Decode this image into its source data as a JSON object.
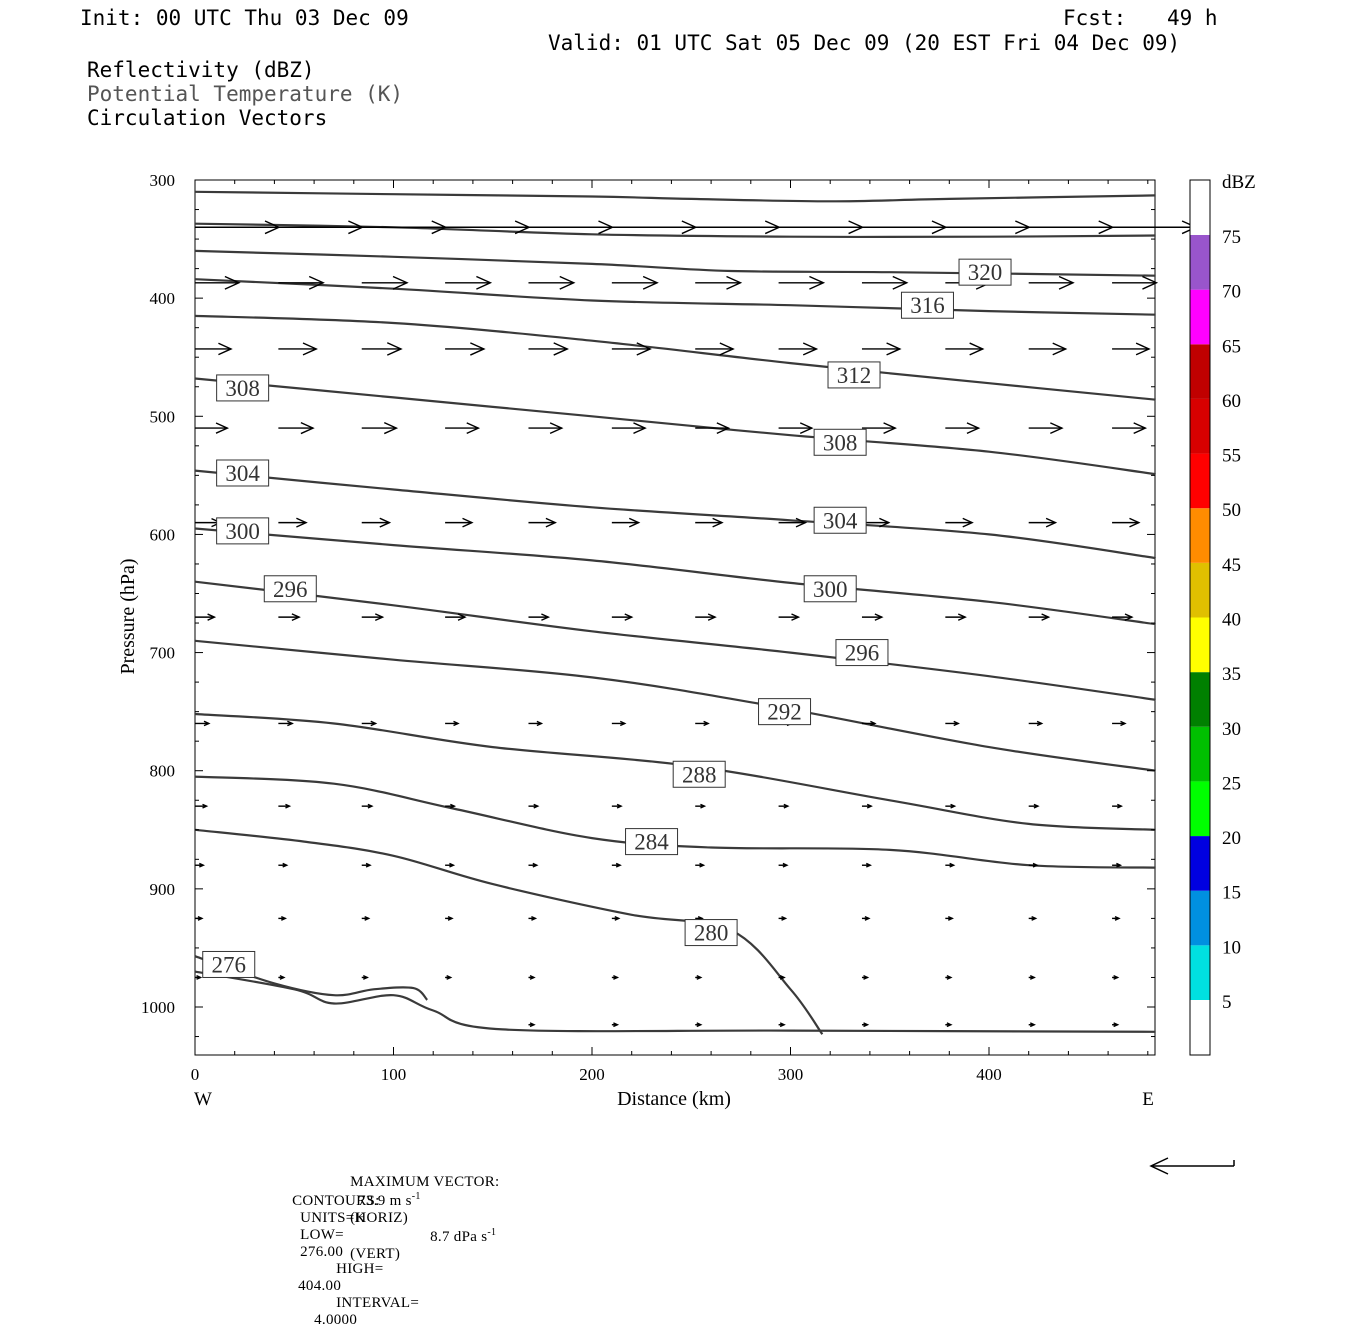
{
  "header": {
    "init": "Init: 00 UTC Thu 03 Dec 09",
    "fcst_label": "Fcst:",
    "fcst_value": "49 h",
    "valid": "Valid: 01 UTC Sat 05 Dec 09 (20 EST Fri 04 Dec 09)",
    "field1": "Reflectivity (dBZ)",
    "field2": "Potential Temperature (K)",
    "field3": "Circulation Vectors"
  },
  "colors": {
    "isentrope": "#3a3a3a",
    "vector": "#000000",
    "field2_text": "#555555"
  },
  "chart_data": {
    "type": "line",
    "title": "",
    "xlabel": "Distance (km)",
    "ylabel": "Pressure (hPa)",
    "xlim": [
      0,
      484
    ],
    "ylim": [
      1040,
      300
    ],
    "x_ticks": [
      0,
      100,
      200,
      300,
      400
    ],
    "y_ticks": [
      300,
      400,
      500,
      600,
      700,
      800,
      900,
      1000
    ],
    "x_end_labels": {
      "left": "W",
      "right": "E"
    },
    "grid": false,
    "legend": "none",
    "isentropes": [
      {
        "theta": null,
        "points": [
          [
            0,
            310
          ],
          [
            100,
            312
          ],
          [
            200,
            314
          ],
          [
            250,
            316
          ],
          [
            320,
            318
          ],
          [
            380,
            316
          ],
          [
            484,
            313
          ]
        ]
      },
      {
        "theta": null,
        "points": [
          [
            0,
            337
          ],
          [
            100,
            340
          ],
          [
            200,
            346
          ],
          [
            300,
            348
          ],
          [
            400,
            348
          ],
          [
            484,
            347
          ]
        ]
      },
      {
        "theta": null,
        "points": [
          [
            0,
            360
          ],
          [
            100,
            365
          ],
          [
            200,
            371
          ],
          [
            270,
            377
          ],
          [
            350,
            378
          ],
          [
            484,
            381
          ]
        ],
        "label": "320",
        "label_at": [
          398,
          378
        ]
      },
      {
        "theta": null,
        "points": [
          [
            0,
            384
          ],
          [
            100,
            392
          ],
          [
            200,
            402
          ],
          [
            300,
            406
          ],
          [
            400,
            411
          ],
          [
            484,
            414
          ]
        ],
        "label": "316",
        "label_at": [
          369,
          406
        ]
      },
      {
        "theta": null,
        "points": [
          [
            0,
            415
          ],
          [
            100,
            421
          ],
          [
            200,
            436
          ],
          [
            300,
            455
          ],
          [
            400,
            472
          ],
          [
            484,
            486
          ]
        ],
        "label": "312",
        "label_at": [
          332,
          465
        ]
      },
      {
        "theta": null,
        "points": [
          [
            0,
            468
          ],
          [
            100,
            484
          ],
          [
            200,
            500
          ],
          [
            300,
            516
          ],
          [
            400,
            530
          ],
          [
            484,
            549
          ]
        ],
        "label": "308",
        "label_at": [
          325,
          522
        ],
        "label2": "308",
        "label2_at": [
          24,
          476
        ]
      },
      {
        "theta": null,
        "points": [
          [
            0,
            546
          ],
          [
            100,
            562
          ],
          [
            200,
            577
          ],
          [
            300,
            588
          ],
          [
            400,
            600
          ],
          [
            484,
            620
          ]
        ],
        "label": "304",
        "label_at": [
          325,
          588
        ],
        "label2": "304",
        "label2_at": [
          24,
          548
        ]
      },
      {
        "theta": null,
        "points": [
          [
            0,
            595
          ],
          [
            100,
            609
          ],
          [
            200,
            622
          ],
          [
            300,
            641
          ],
          [
            400,
            657
          ],
          [
            484,
            676
          ]
        ],
        "label": "300",
        "label_at": [
          320,
          646
        ],
        "label2": "300",
        "label2_at": [
          24,
          597
        ]
      },
      {
        "theta": null,
        "points": [
          [
            0,
            640
          ],
          [
            100,
            660
          ],
          [
            200,
            682
          ],
          [
            300,
            700
          ],
          [
            400,
            720
          ],
          [
            484,
            740
          ]
        ],
        "label": "296",
        "label_at": [
          336,
          700
        ],
        "label2": "296",
        "label2_at": [
          48,
          646
        ]
      },
      {
        "theta": null,
        "points": [
          [
            0,
            690
          ],
          [
            100,
            706
          ],
          [
            200,
            721
          ],
          [
            290,
            745
          ],
          [
            400,
            780
          ],
          [
            484,
            800
          ]
        ],
        "label": "292",
        "label_at": [
          297,
          750
        ]
      },
      {
        "theta": null,
        "points": [
          [
            0,
            752
          ],
          [
            70,
            760
          ],
          [
            150,
            780
          ],
          [
            250,
            796
          ],
          [
            350,
            825
          ],
          [
            420,
            845
          ],
          [
            484,
            850
          ]
        ],
        "label": "288",
        "label_at": [
          254,
          803
        ]
      },
      {
        "theta": null,
        "points": [
          [
            0,
            805
          ],
          [
            70,
            811
          ],
          [
            130,
            832
          ],
          [
            200,
            857
          ],
          [
            260,
            865
          ],
          [
            350,
            867
          ],
          [
            420,
            880
          ],
          [
            484,
            882
          ]
        ],
        "label": "284",
        "label_at": [
          230,
          860
        ]
      },
      {
        "theta": null,
        "points": [
          [
            0,
            850
          ],
          [
            55,
            860
          ],
          [
            100,
            872
          ],
          [
            150,
            896
          ],
          [
            220,
            922
          ],
          [
            270,
            935
          ],
          [
            300,
            985
          ],
          [
            316,
            1023
          ]
        ],
        "label": "280",
        "label_at": [
          260,
          937
        ]
      },
      {
        "theta": null,
        "points": [
          [
            0,
            970
          ],
          [
            50,
            985
          ],
          [
            70,
            997
          ],
          [
            100,
            990
          ],
          [
            120,
            1003
          ],
          [
            155,
            1019
          ],
          [
            300,
            1020
          ],
          [
            484,
            1021
          ]
        ],
        "label": "276",
        "label_at": [
          17,
          964
        ]
      },
      {
        "theta": null,
        "points": [
          [
            0,
            957
          ],
          [
            40,
            980
          ],
          [
            70,
            990
          ],
          [
            90,
            985
          ],
          [
            110,
            984
          ],
          [
            117,
            994
          ]
        ]
      }
    ],
    "vectors": {
      "note_x": [
        0,
        42,
        84,
        126,
        168,
        210,
        252,
        294,
        336,
        378,
        420,
        462
      ],
      "levels": [
        {
          "p": 340,
          "u": [
            1.0,
            1.0,
            1.0,
            1.0,
            1.0,
            1.0,
            1.0,
            1.0,
            1.0,
            1.0,
            1.0,
            1.0
          ],
          "w": [
            0,
            0,
            0,
            0,
            0,
            0,
            0,
            0,
            0,
            0,
            0,
            0
          ]
        },
        {
          "p": 387,
          "u": [
            0.95,
            0.97,
            0.98,
            0.98,
            0.98,
            0.98,
            0.98,
            0.97,
            0.97,
            0.97,
            0.96,
            0.96
          ],
          "w": [
            0,
            0,
            0,
            0,
            0,
            0,
            0,
            0,
            0,
            0,
            0,
            0
          ]
        },
        {
          "p": 443,
          "u": [
            0.78,
            0.82,
            0.85,
            0.84,
            0.84,
            0.83,
            0.82,
            0.82,
            0.82,
            0.81,
            0.8,
            0.8
          ],
          "w": [
            0,
            0,
            0,
            0,
            0,
            0,
            0,
            0,
            0,
            0,
            0,
            0
          ]
        },
        {
          "p": 510,
          "u": [
            0.7,
            0.75,
            0.75,
            0.72,
            0.72,
            0.72,
            0.72,
            0.72,
            0.72,
            0.72,
            0.72,
            0.72
          ],
          "w": [
            0,
            0,
            0,
            0,
            0,
            0,
            0,
            0,
            0,
            0,
            0,
            0
          ]
        },
        {
          "p": 590,
          "u": [
            0.55,
            0.6,
            0.6,
            0.58,
            0.58,
            0.58,
            0.58,
            0.58,
            0.58,
            0.58,
            0.58,
            0.58
          ],
          "w": [
            0,
            0,
            0,
            0,
            0,
            0,
            0,
            0,
            0,
            0,
            0,
            0
          ]
        },
        {
          "p": 670,
          "u": [
            0.42,
            0.45,
            0.45,
            0.43,
            0.43,
            0.43,
            0.43,
            0.43,
            0.43,
            0.43,
            0.43,
            0.43
          ],
          "w": [
            0,
            0,
            0,
            0,
            0,
            0,
            0,
            0,
            0,
            0,
            0,
            0
          ]
        },
        {
          "p": 760,
          "u": [
            0.3,
            0.3,
            0.3,
            0.28,
            0.28,
            0.28,
            0.28,
            0.28,
            0.28,
            0.28,
            0.28,
            0.28
          ],
          "w": [
            0,
            0,
            0,
            0,
            0,
            0,
            0,
            0,
            0,
            0,
            0,
            0
          ]
        },
        {
          "p": 830,
          "u": [
            0.25,
            0.24,
            0.22,
            0.2,
            0.2,
            0.2,
            0.2,
            0.2,
            0.2,
            0.2,
            0.2,
            0.2
          ],
          "w": [
            0,
            0,
            0,
            0,
            0,
            0,
            0,
            0,
            0,
            0,
            0,
            0
          ]
        },
        {
          "p": 880,
          "u": [
            0.18,
            0.18,
            0.18,
            0.18,
            0.18,
            0.18,
            0.18,
            0.18,
            0.18,
            0.18,
            0.18,
            0.18
          ],
          "w": [
            0,
            0,
            0,
            0,
            0,
            0,
            0,
            0,
            0,
            0,
            0,
            0
          ]
        },
        {
          "p": 925,
          "u": [
            0.15,
            0.15,
            0.15,
            0.15,
            0.15,
            0.15,
            0.15,
            0.15,
            0.15,
            0.15,
            0.15,
            0.15
          ],
          "w": [
            0,
            0,
            0,
            0,
            0,
            0,
            0,
            0,
            0,
            0,
            0,
            0
          ]
        },
        {
          "p": 975,
          "u": [
            0.12,
            0.12,
            0.12,
            0.12,
            0.12,
            0.12,
            0.12,
            0.12,
            0.12,
            0.12,
            0.12,
            0.12
          ],
          "w": [
            0,
            0,
            0,
            0,
            0,
            0,
            0,
            0,
            0,
            0,
            0,
            0
          ]
        },
        {
          "p": 1015,
          "u": [
            0,
            0,
            0,
            0,
            0.12,
            0.12,
            0.12,
            0.12,
            0.12,
            0.12,
            0.12,
            0.12
          ],
          "w": [
            0,
            0,
            0,
            0,
            0,
            0,
            0,
            0,
            0,
            0,
            0,
            0
          ]
        }
      ]
    },
    "colorbar": {
      "unit": "dBZ",
      "levels": [
        5,
        10,
        15,
        20,
        25,
        30,
        35,
        40,
        45,
        50,
        55,
        60,
        65,
        70,
        75
      ],
      "colors": [
        "#ffffff",
        "#00e0e0",
        "#0090e0",
        "#0000e0",
        "#00ff00",
        "#00c000",
        "#008000",
        "#ffff00",
        "#e0c000",
        "#ff8c00",
        "#ff0000",
        "#d80000",
        "#c00000",
        "#ff00ff",
        "#9955cc",
        "#ffffff"
      ]
    }
  },
  "footer": {
    "max_vector_label": "MAXIMUM VECTOR:",
    "horiz_value": "73.9 m s",
    "horiz_exp": "-1",
    "horiz_tag": "(HORIZ)",
    "vert_value": "8.7 dPa s",
    "vert_exp": "-1",
    "vert_tag": "(VERT)",
    "contours_label": "CONTOURS:",
    "units": "UNITS=K",
    "low_label": "LOW=",
    "low": "276.00",
    "high_label": "HIGH=",
    "high": "404.00",
    "interval_label": "INTERVAL=",
    "interval": "4.0000"
  }
}
